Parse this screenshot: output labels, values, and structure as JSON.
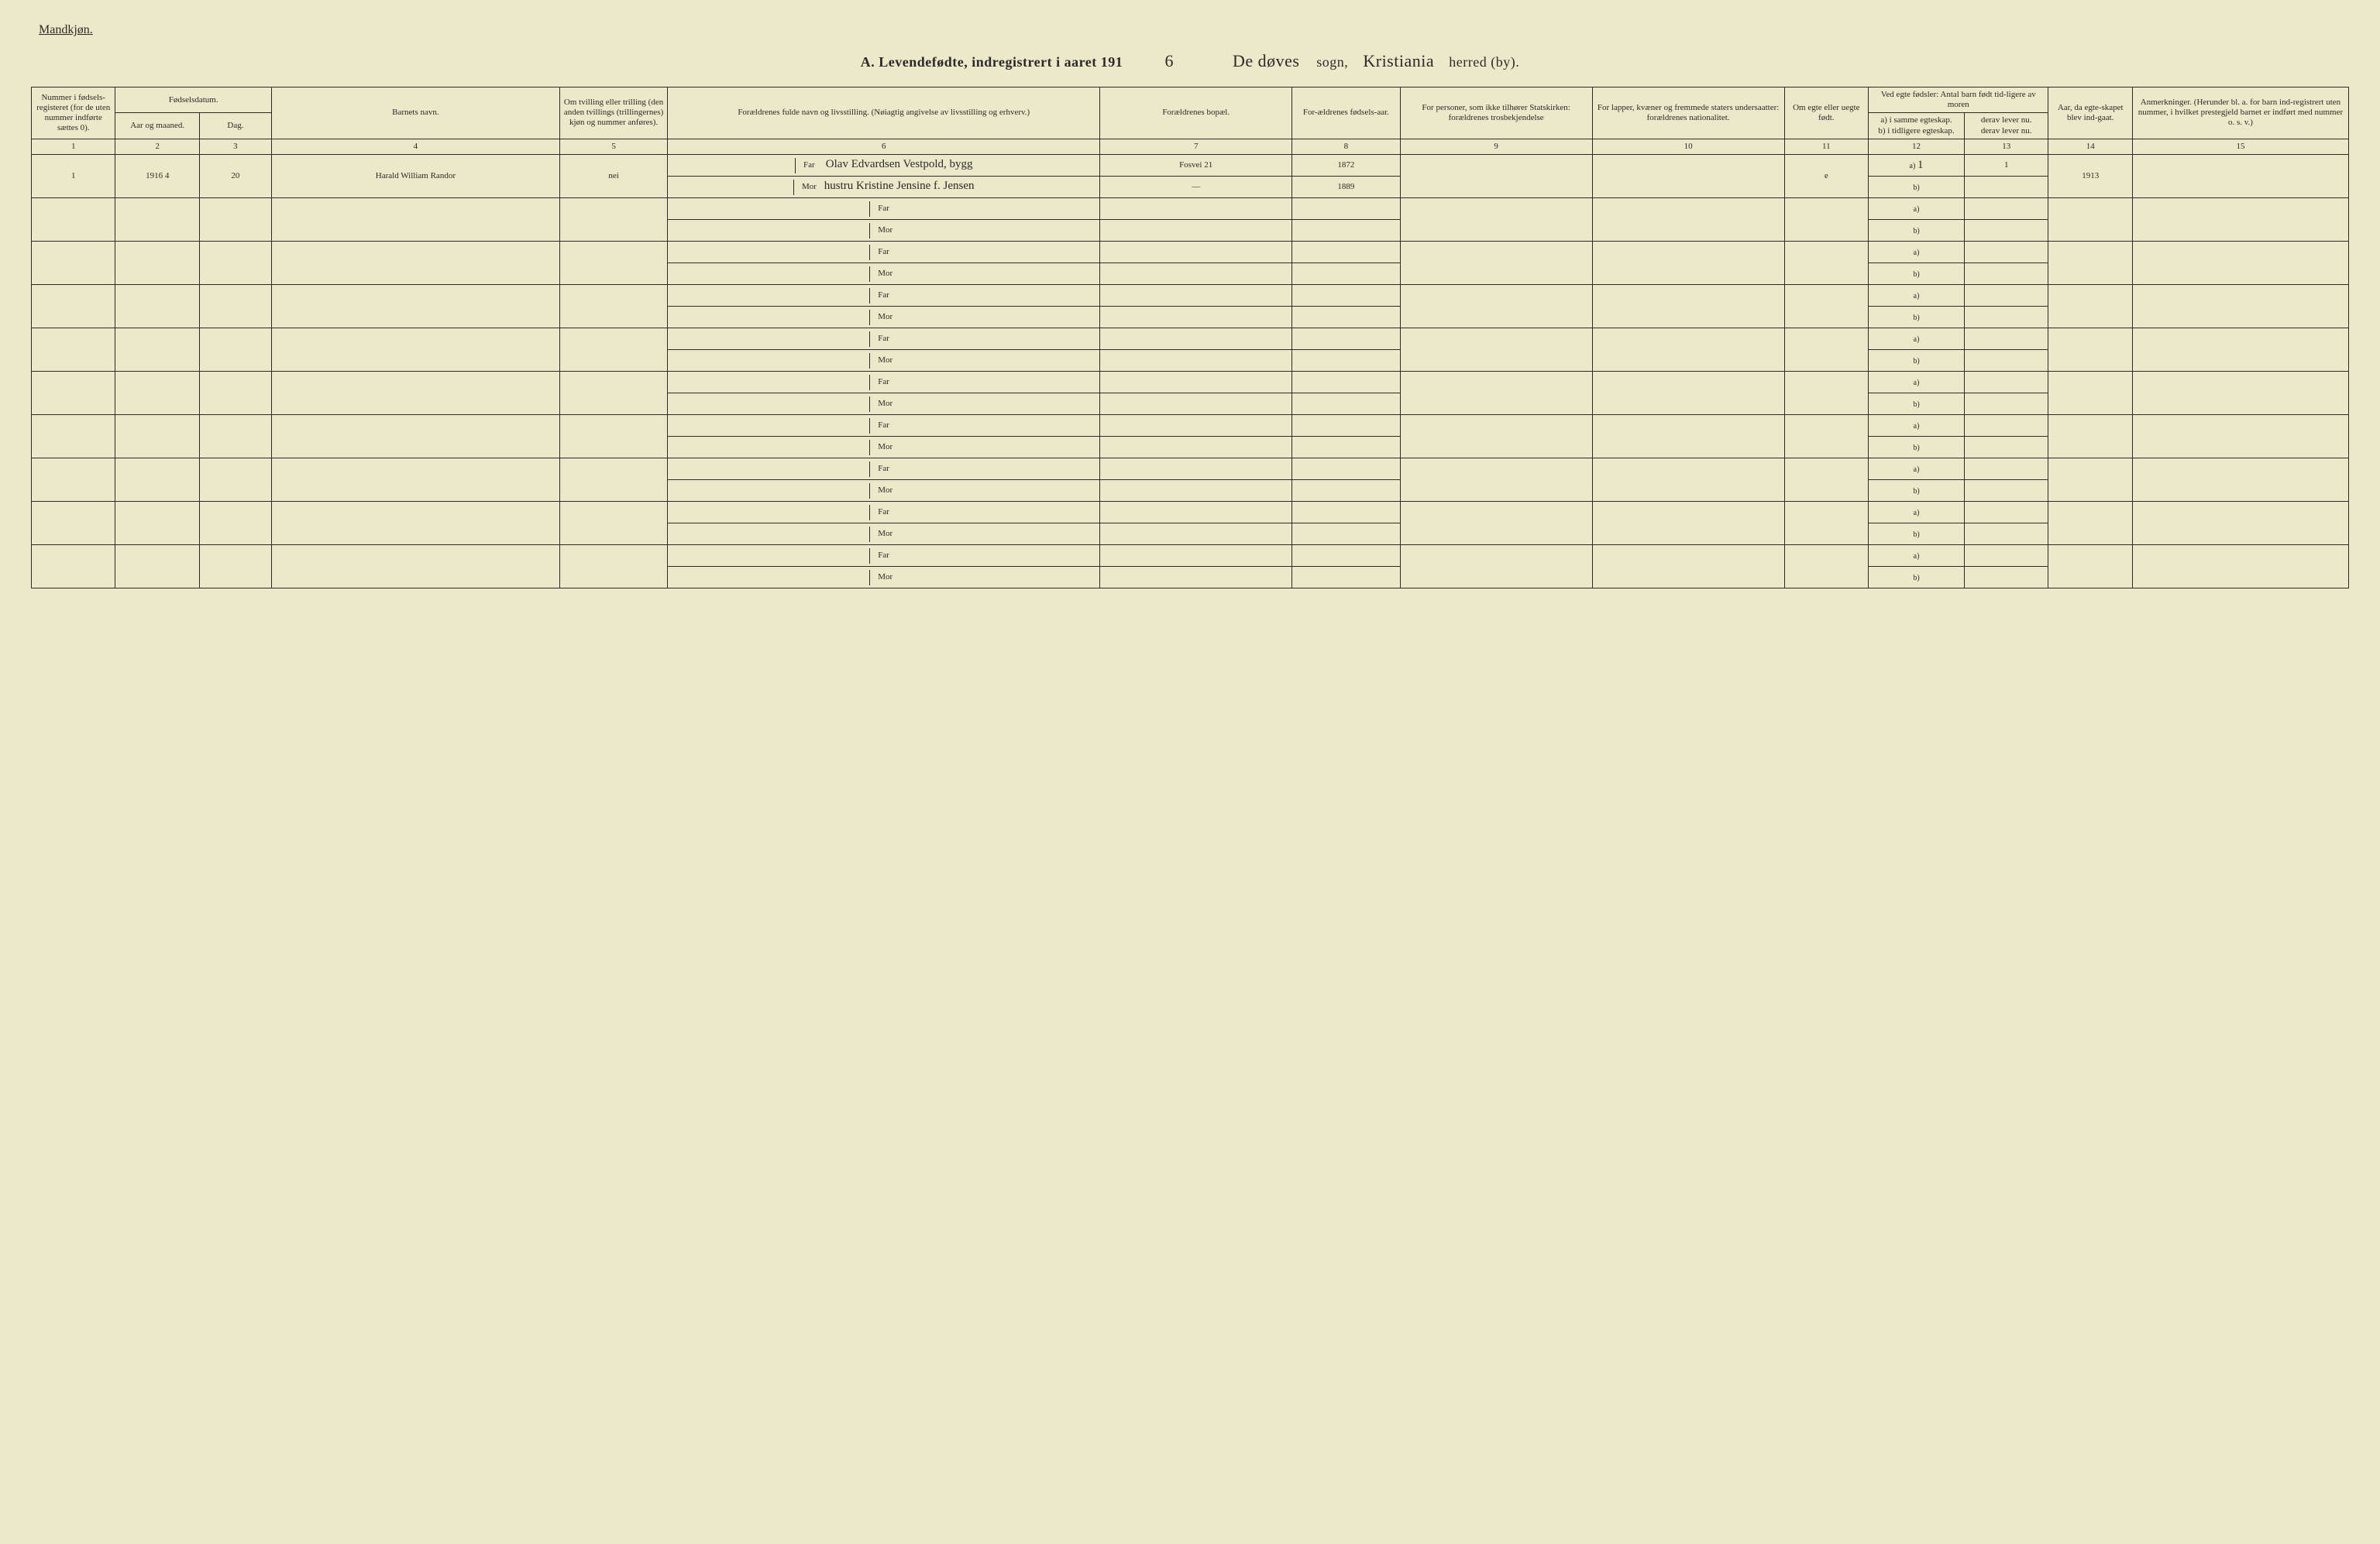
{
  "header": {
    "gender": "Mandkjøn.",
    "title_prefix": "A.",
    "title_main": "Levendefødte, indregistrert i aaret 191",
    "year_suffix": "6",
    "sogn_hand": "De døves",
    "sogn_label": "sogn,",
    "herred_hand": "Kristiania",
    "herred_label": "herred (by)."
  },
  "columns": {
    "c1": "Nummer i fødsels-registeret (for de uten nummer indførte sættes 0).",
    "c2_top": "Fødselsdatum.",
    "c2a": "Aar og maaned.",
    "c2b": "Dag.",
    "c4": "Barnets navn.",
    "c5": "Om tvilling eller trilling (den anden tvillings (trillingernes) kjøn og nummer anføres).",
    "c6": "Forældrenes fulde navn og livsstilling. (Nøiagtig angivelse av livsstilling og erhverv.)",
    "c7": "Forældrenes bopæl.",
    "c8": "For-ældrenes fødsels-aar.",
    "c9": "For personer, som ikke tilhører Statskirken: forældrenes trosbekjendelse",
    "c10": "For lapper, kvæner og fremmede staters undersaatter: forældrenes nationalitet.",
    "c11": "Om egte eller uegte født.",
    "c12_top": "Ved egte fødsler: Antal barn født tid-ligere av moren",
    "c12a": "a) i samme egteskap.",
    "c12b": "b) i tidligere egteskap.",
    "c13a": "derav lever nu.",
    "c13b": "derav lever nu.",
    "c14": "Aar, da egte-skapet blev ind-gaat.",
    "c15": "Anmerkninger. (Herunder bl. a. for barn ind-registrert uten nummer, i hvilket prestegjeld barnet er indført med nummer o. s. v.)"
  },
  "col_numbers": [
    "1",
    "2",
    "3",
    "4",
    "5",
    "6",
    "7",
    "8",
    "9",
    "10",
    "11",
    "12",
    "13",
    "14",
    "15"
  ],
  "parent_labels": {
    "far": "Far",
    "mor": "Mor"
  },
  "sub_labels": {
    "a": "a)",
    "b": "b)"
  },
  "entries": [
    {
      "num": "1",
      "year_month": "1916 4",
      "day": "20",
      "child_name": "Harald William Randor",
      "twin": "nei",
      "far_name": "Olav Edvardsen Vestpold, bygg",
      "mor_name": "hustru Kristine Jensine f. Jensen",
      "far_bopael": "Fosvei 21",
      "mor_bopael": "—",
      "far_year": "1872",
      "mor_year": "1889",
      "c9": "",
      "c10": "",
      "egte": "e",
      "c12a": "1",
      "c12b": "",
      "c13a": "1",
      "c13b": "",
      "c14": "1913",
      "c15": ""
    }
  ],
  "blank_rows": 9,
  "styling": {
    "background_color": "#ebe9c9",
    "border_color": "#2a2a2a",
    "header_fontsize": 11,
    "body_fontsize": 11,
    "handwritten_font": "cursive",
    "title_fontsize": 18
  },
  "col_widths_pct": [
    3.5,
    3.5,
    3,
    12,
    4.5,
    18,
    8,
    4.5,
    8,
    8,
    3.5,
    4,
    3.5,
    3.5,
    9
  ]
}
